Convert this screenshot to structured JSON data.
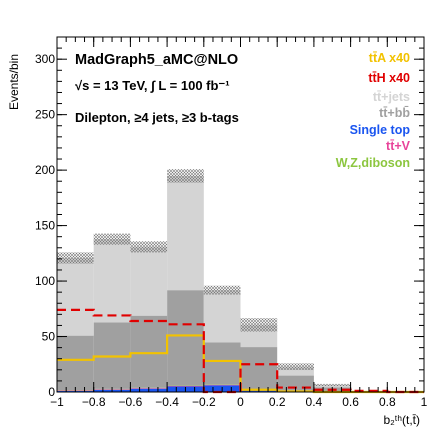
{
  "chart_data": {
    "type": "bar",
    "stacked": true,
    "title": "MadGraph5_aMC@NLO",
    "info_lines": [
      "√s = 13 TeV, ∫ L = 100 fb⁻¹",
      "Dilepton, ≥4 jets, ≥3 b-tags"
    ],
    "xlabel": "b₂ᵗʰ(t,t̄)",
    "ylabel": "Events/bin",
    "xlim": [
      -1,
      1
    ],
    "ylim": [
      0,
      320
    ],
    "x_ticks": [
      -1,
      -0.8,
      -0.6,
      -0.4,
      -0.2,
      0,
      0.2,
      0.4,
      0.6,
      0.8,
      1
    ],
    "x_tick_labels": [
      "−1",
      "−0.8",
      "−0.6",
      "−0.4",
      "−0.2",
      "0",
      "0.2",
      "0.4",
      "0.6",
      "0.8",
      "1"
    ],
    "y_ticks": [
      0,
      50,
      100,
      150,
      200,
      250,
      300
    ],
    "y_tick_labels": [
      "0",
      "50",
      "100",
      "150",
      "200",
      "250",
      "300"
    ],
    "bin_edges": [
      -1,
      -0.8,
      -0.6,
      -0.4,
      -0.2,
      0,
      0.2,
      0.4,
      0.6,
      0.8,
      1
    ],
    "stack_series": [
      {
        "name": "Single top",
        "color": "#1a55f0",
        "values": [
          1,
          2,
          3,
          5,
          6,
          2,
          0.5,
          0.2,
          0,
          0
        ]
      },
      {
        "name": "tt+V",
        "color": "#e8439a",
        "values": [
          0.5,
          0.5,
          0.5,
          0.5,
          0.5,
          0.3,
          0.2,
          0.1,
          0,
          0
        ]
      },
      {
        "name": "W,Z,diboson",
        "color": "#8cc63f",
        "values": [
          0.3,
          0.3,
          0.3,
          0.3,
          0.3,
          0.2,
          0.1,
          0,
          0,
          0
        ]
      },
      {
        "name": "tt+bb",
        "color": "#a0a0a0",
        "values": [
          49,
          60,
          65,
          86,
          38,
          38,
          14,
          4,
          1,
          0.5
        ]
      },
      {
        "name": "tt+jets",
        "color": "#d4d4d4",
        "values": [
          70,
          75,
          62,
          103,
          47,
          20,
          8,
          2,
          0,
          0
        ]
      }
    ],
    "stack_band_half_width": [
      5,
      5,
      5,
      6,
      4,
      6,
      3,
      1,
      0,
      0
    ],
    "line_series": [
      {
        "name": "ttA x40",
        "color": "#f2c200",
        "values": [
          29,
          32,
          35,
          51,
          28,
          2,
          0.5,
          0,
          0,
          0
        ]
      },
      {
        "name": "ttH x40",
        "color": "#e00000",
        "values": [
          74,
          69,
          64,
          61,
          0,
          25,
          4,
          2,
          1,
          0
        ]
      }
    ],
    "legend": {
      "placement": "top-right",
      "entries": [
        {
          "label": "tt̄A x40",
          "color": "#f2c200"
        },
        {
          "label": "tt̄H x40",
          "color": "#e00000"
        },
        {
          "label": "tt̄+jets",
          "color": "#d4d4d4"
        },
        {
          "label": "tt̄+bb̄",
          "color": "#a0a0a0"
        },
        {
          "label": "Single top",
          "color": "#1a55f0"
        },
        {
          "label": "tt̄+V",
          "color": "#e8439a"
        },
        {
          "label": "W,Z,diboson",
          "color": "#8cc63f"
        }
      ]
    },
    "grid": false
  }
}
